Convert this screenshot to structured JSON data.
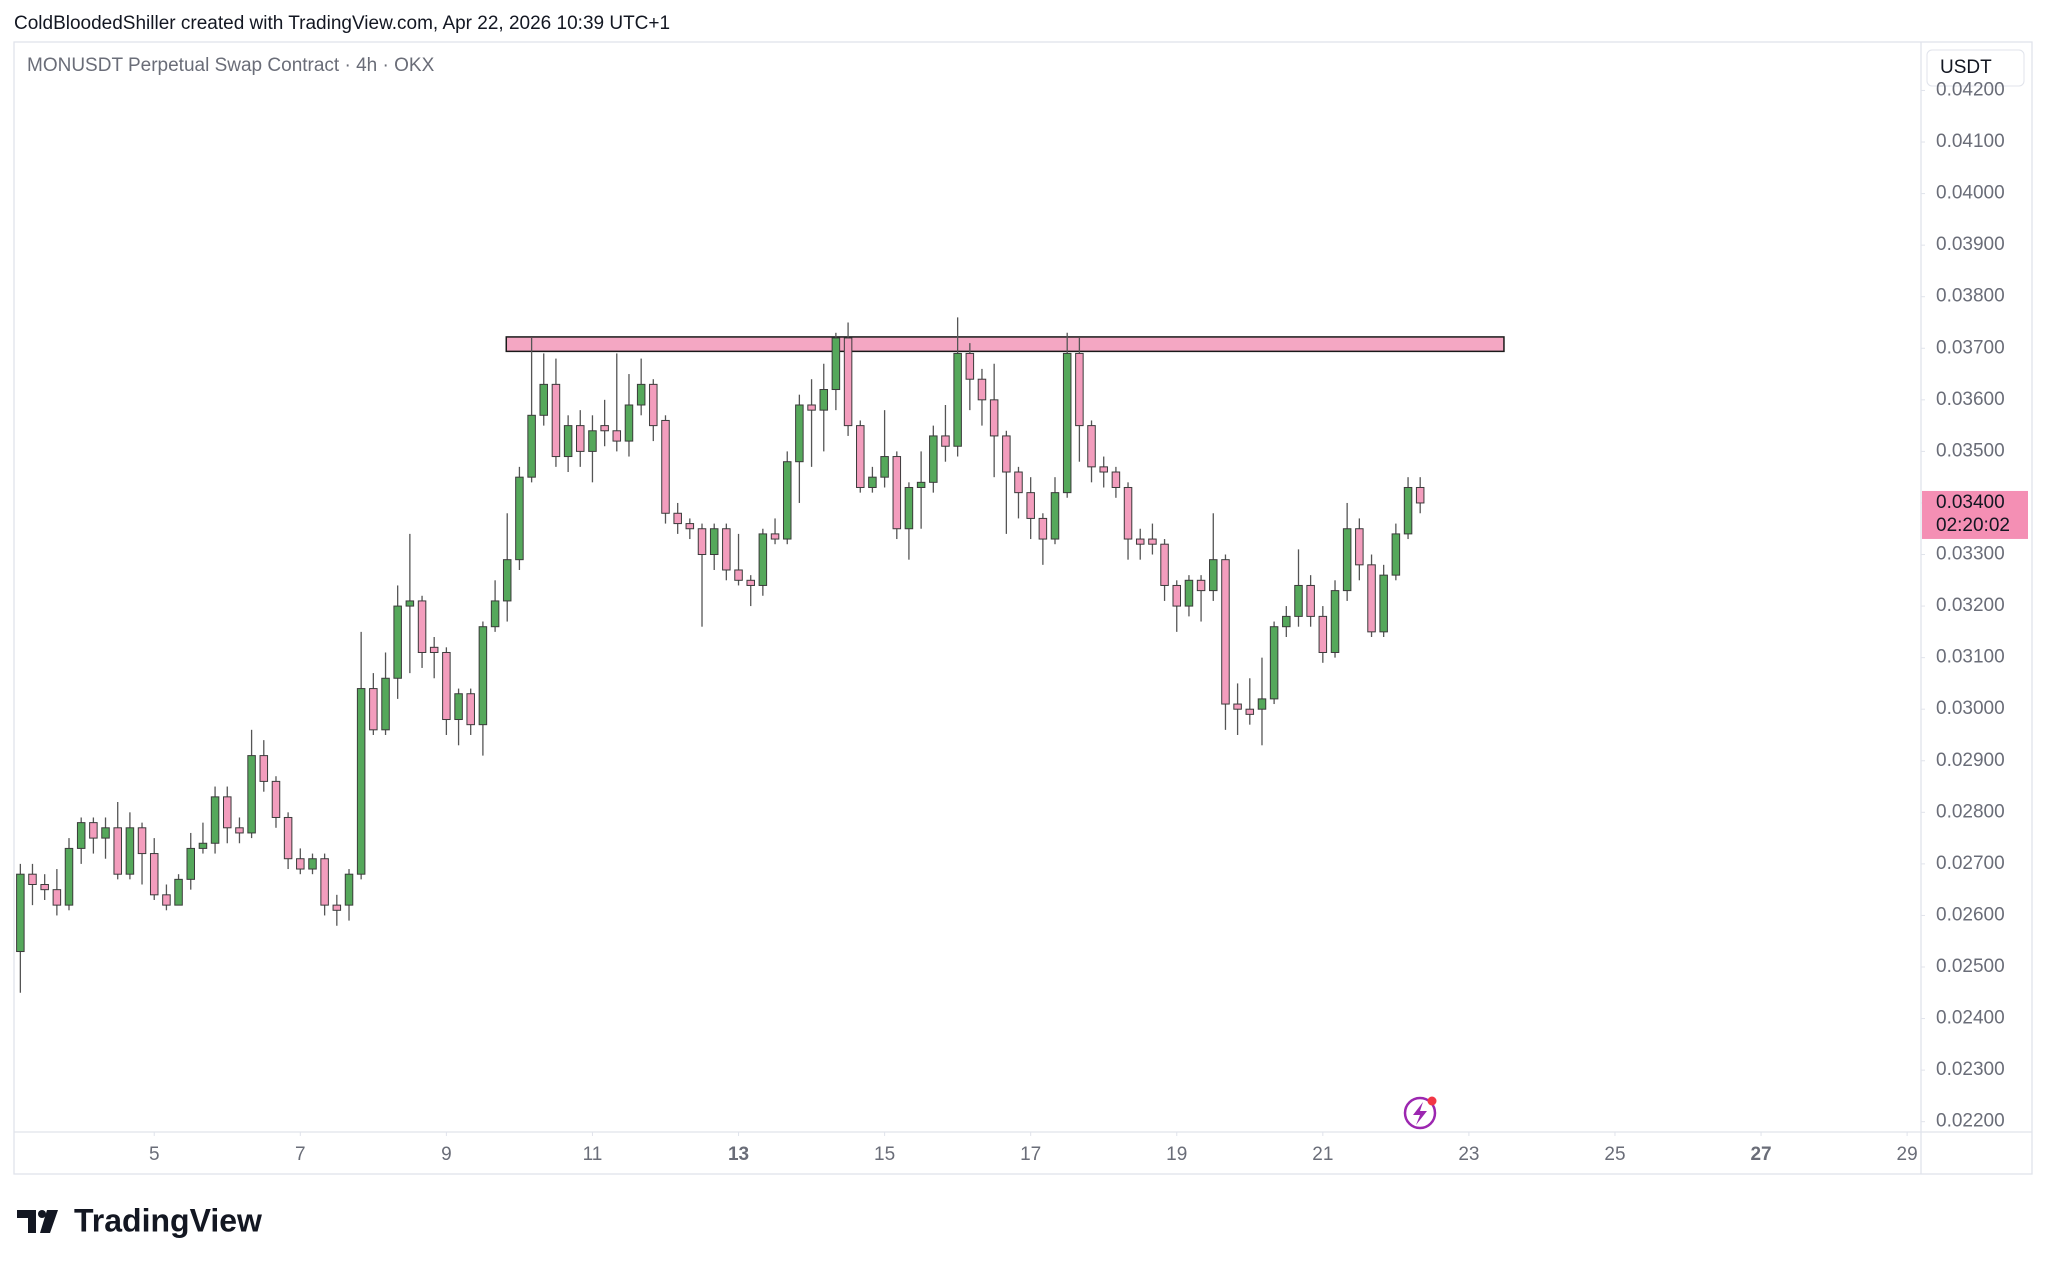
{
  "header": {
    "credit": "ColdBloodedShiller created with TradingView.com, Apr 22, 2026 10:39 UTC+1",
    "symbol": "MONUSDT Perpetual Swap Contract · 4h · OKX"
  },
  "footer": {
    "logo": "TradingView"
  },
  "chart_data": {
    "type": "candlestick",
    "price_scale_unit": "USDT",
    "up_color": "#55a85b",
    "down_color": "#f39dbd",
    "outline_color": "#3b3b3b",
    "x": [
      3.167,
      3.333,
      3.5,
      3.667,
      3.833,
      4,
      4.167,
      4.333,
      4.5,
      4.667,
      4.833,
      5,
      5.167,
      5.333,
      5.5,
      5.667,
      5.833,
      6,
      6.167,
      6.333,
      6.5,
      6.667,
      6.833,
      7,
      7.167,
      7.333,
      7.5,
      7.667,
      7.833,
      8,
      8.167,
      8.333,
      8.5,
      8.667,
      8.833,
      9,
      9.167,
      9.333,
      9.5,
      9.667,
      9.833,
      10,
      10.167,
      10.333,
      10.5,
      10.667,
      10.833,
      11,
      11.167,
      11.333,
      11.5,
      11.667,
      11.833,
      12,
      12.167,
      12.333,
      12.5,
      12.667,
      12.833,
      13,
      13.167,
      13.333,
      13.5,
      13.667,
      13.833,
      14,
      14.167,
      14.333,
      14.5,
      14.667,
      14.833,
      15,
      15.167,
      15.333,
      15.5,
      15.667,
      15.833,
      16,
      16.167,
      16.333,
      16.5,
      16.667,
      16.833,
      17,
      17.167,
      17.333,
      17.5,
      17.667,
      17.833,
      18,
      18.167,
      18.333,
      18.5,
      18.667,
      18.833,
      19,
      19.167,
      19.333,
      19.5,
      19.667,
      19.833,
      20,
      20.167,
      20.333,
      20.5,
      20.667,
      20.833,
      21,
      21.167,
      21.333,
      21.5,
      21.667,
      21.833,
      22,
      22.167,
      22.333
    ],
    "open": [
      0.0253,
      0.0268,
      0.0266,
      0.0265,
      0.0262,
      0.0273,
      0.0278,
      0.0275,
      0.0277,
      0.0268,
      0.0277,
      0.0272,
      0.0264,
      0.0262,
      0.0267,
      0.0273,
      0.0274,
      0.0283,
      0.0277,
      0.0276,
      0.0291,
      0.0286,
      0.0279,
      0.0271,
      0.0269,
      0.0271,
      0.0262,
      0.0262,
      0.0268,
      0.0304,
      0.0296,
      0.0306,
      0.032,
      0.0321,
      0.0312,
      0.0311,
      0.0298,
      0.0303,
      0.0297,
      0.0316,
      0.0321,
      0.0329,
      0.0345,
      0.0357,
      0.0363,
      0.0349,
      0.0355,
      0.035,
      0.0355,
      0.0354,
      0.0352,
      0.0359,
      0.0363,
      0.0356,
      0.0338,
      0.0336,
      0.0335,
      0.033,
      0.0335,
      0.0327,
      0.0325,
      0.0324,
      0.0334,
      0.0333,
      0.0348,
      0.0359,
      0.0358,
      0.0362,
      0.0372,
      0.0355,
      0.0343,
      0.0345,
      0.0349,
      0.0335,
      0.0343,
      0.0344,
      0.0353,
      0.0351,
      0.0369,
      0.0364,
      0.036,
      0.0353,
      0.0346,
      0.0342,
      0.0337,
      0.0333,
      0.0342,
      0.0369,
      0.0355,
      0.0347,
      0.0346,
      0.0343,
      0.0333,
      0.0333,
      0.0332,
      0.0324,
      0.032,
      0.0325,
      0.0323,
      0.0329,
      0.0301,
      0.03,
      0.03,
      0.0302,
      0.0316,
      0.0318,
      0.0324,
      0.0318,
      0.0311,
      0.0323,
      0.0335,
      0.0328,
      0.0315,
      0.0326,
      0.0334,
      0.0343
    ],
    "high": [
      0.027,
      0.027,
      0.0268,
      0.0269,
      0.0275,
      0.0279,
      0.0279,
      0.0279,
      0.0282,
      0.028,
      0.0278,
      0.0275,
      0.0266,
      0.0268,
      0.0276,
      0.0278,
      0.0285,
      0.0285,
      0.0279,
      0.0296,
      0.0294,
      0.0287,
      0.028,
      0.0273,
      0.0272,
      0.0272,
      0.0264,
      0.0269,
      0.0315,
      0.0307,
      0.0311,
      0.0324,
      0.0334,
      0.0322,
      0.0314,
      0.0312,
      0.0304,
      0.0304,
      0.0317,
      0.0325,
      0.0338,
      0.0347,
      0.0372,
      0.0369,
      0.0368,
      0.0357,
      0.0358,
      0.0357,
      0.036,
      0.0369,
      0.0365,
      0.0368,
      0.0364,
      0.0357,
      0.034,
      0.0337,
      0.0336,
      0.0336,
      0.0336,
      0.0334,
      0.0326,
      0.0335,
      0.0337,
      0.035,
      0.0361,
      0.0364,
      0.0367,
      0.0373,
      0.0375,
      0.0356,
      0.0347,
      0.0358,
      0.035,
      0.0344,
      0.035,
      0.0355,
      0.0359,
      0.0376,
      0.0371,
      0.0366,
      0.0367,
      0.0354,
      0.0347,
      0.0345,
      0.0338,
      0.0345,
      0.0373,
      0.0372,
      0.0356,
      0.0349,
      0.0347,
      0.0344,
      0.0335,
      0.0336,
      0.0333,
      0.0325,
      0.0326,
      0.0326,
      0.0338,
      0.033,
      0.0305,
      0.0306,
      0.031,
      0.0317,
      0.032,
      0.0331,
      0.0326,
      0.032,
      0.0325,
      0.034,
      0.0337,
      0.033,
      0.0328,
      0.0336,
      0.0345,
      0.0345
    ],
    "low": [
      0.0245,
      0.0262,
      0.0263,
      0.026,
      0.0261,
      0.027,
      0.0272,
      0.0271,
      0.0267,
      0.0267,
      0.0266,
      0.0263,
      0.0261,
      0.0262,
      0.0265,
      0.0272,
      0.0272,
      0.0274,
      0.0274,
      0.0275,
      0.0284,
      0.0277,
      0.0269,
      0.0268,
      0.0268,
      0.026,
      0.0258,
      0.0259,
      0.0267,
      0.0295,
      0.0295,
      0.0302,
      0.0307,
      0.0308,
      0.0306,
      0.0295,
      0.0293,
      0.0295,
      0.0291,
      0.0315,
      0.0317,
      0.0327,
      0.0344,
      0.0355,
      0.0347,
      0.0346,
      0.0347,
      0.0344,
      0.0351,
      0.035,
      0.0349,
      0.0357,
      0.0352,
      0.0336,
      0.0334,
      0.0333,
      0.0316,
      0.0327,
      0.0325,
      0.0324,
      0.032,
      0.0322,
      0.0332,
      0.0332,
      0.034,
      0.0347,
      0.035,
      0.0358,
      0.0353,
      0.0342,
      0.0342,
      0.0343,
      0.0333,
      0.0329,
      0.0335,
      0.0342,
      0.0348,
      0.0349,
      0.0358,
      0.0355,
      0.0345,
      0.0334,
      0.0337,
      0.0333,
      0.0328,
      0.0332,
      0.0341,
      0.0348,
      0.0344,
      0.0343,
      0.0341,
      0.0329,
      0.0329,
      0.033,
      0.0321,
      0.0315,
      0.0318,
      0.0317,
      0.0321,
      0.0296,
      0.0295,
      0.0297,
      0.0293,
      0.0301,
      0.0314,
      0.0316,
      0.0316,
      0.0309,
      0.031,
      0.0321,
      0.0325,
      0.0314,
      0.0314,
      0.0325,
      0.0333,
      0.0338
    ],
    "close": [
      0.0268,
      0.0266,
      0.0265,
      0.0262,
      0.0273,
      0.0278,
      0.0275,
      0.0277,
      0.0268,
      0.0277,
      0.0272,
      0.0264,
      0.0262,
      0.0267,
      0.0273,
      0.0274,
      0.0283,
      0.0277,
      0.0276,
      0.0291,
      0.0286,
      0.0279,
      0.0271,
      0.0269,
      0.0271,
      0.0262,
      0.0261,
      0.0268,
      0.0304,
      0.0296,
      0.0306,
      0.032,
      0.0321,
      0.0311,
      0.0311,
      0.0298,
      0.0303,
      0.0297,
      0.0316,
      0.0321,
      0.0329,
      0.0345,
      0.0357,
      0.0363,
      0.0349,
      0.0355,
      0.035,
      0.0354,
      0.0354,
      0.0352,
      0.0359,
      0.0363,
      0.0355,
      0.0338,
      0.0336,
      0.0335,
      0.033,
      0.0335,
      0.0327,
      0.0325,
      0.0324,
      0.0334,
      0.0333,
      0.0348,
      0.0359,
      0.0358,
      0.0362,
      0.0372,
      0.0355,
      0.0343,
      0.0345,
      0.0349,
      0.0335,
      0.0343,
      0.0344,
      0.0353,
      0.0351,
      0.0369,
      0.0364,
      0.036,
      0.0353,
      0.0346,
      0.0342,
      0.0337,
      0.0333,
      0.0342,
      0.0369,
      0.0355,
      0.0347,
      0.0346,
      0.0343,
      0.0333,
      0.0332,
      0.0332,
      0.0324,
      0.032,
      0.0325,
      0.0323,
      0.0329,
      0.0301,
      0.03,
      0.0299,
      0.0302,
      0.0316,
      0.0318,
      0.0324,
      0.0318,
      0.0311,
      0.0323,
      0.0335,
      0.0328,
      0.0315,
      0.0326,
      0.0334,
      0.0343,
      0.034
    ],
    "xlim": [
      3.08,
      29.19
    ],
    "xticks": [
      5,
      7,
      9,
      11,
      13,
      15,
      17,
      19,
      21,
      23,
      25,
      27,
      29
    ],
    "xticks_bold": [
      13,
      27
    ],
    "ylim": [
      0.0218,
      0.04294
    ],
    "yticks": [
      {
        "value": 0.022,
        "label": "0.02200"
      },
      {
        "value": 0.023,
        "label": "0.02300"
      },
      {
        "value": 0.024,
        "label": "0.02400"
      },
      {
        "value": 0.025,
        "label": "0.02500"
      },
      {
        "value": 0.026,
        "label": "0.02600"
      },
      {
        "value": 0.027,
        "label": "0.02700"
      },
      {
        "value": 0.028,
        "label": "0.02800"
      },
      {
        "value": 0.029,
        "label": "0.02900"
      },
      {
        "value": 0.03,
        "label": "0.03000"
      },
      {
        "value": 0.031,
        "label": "0.03100"
      },
      {
        "value": 0.032,
        "label": "0.03200"
      },
      {
        "value": 0.033,
        "label": "0.03300"
      },
      {
        "value": 0.034,
        "label": "0.03400"
      },
      {
        "value": 0.035,
        "label": "0.03500"
      },
      {
        "value": 0.036,
        "label": "0.03600"
      },
      {
        "value": 0.037,
        "label": "0.03700"
      },
      {
        "value": 0.038,
        "label": "0.03800"
      },
      {
        "value": 0.039,
        "label": "0.03900"
      },
      {
        "value": 0.04,
        "label": "0.04000"
      },
      {
        "value": 0.041,
        "label": "0.04100"
      },
      {
        "value": 0.042,
        "label": "0.04200"
      }
    ],
    "zone": {
      "x": [
        9.82,
        23.48
      ],
      "y": [
        0.03694,
        0.03722
      ],
      "color": "#f4a7c3"
    },
    "last_price": {
      "value": 0.034,
      "label": "0.03400"
    },
    "countdown": "02:20:02",
    "last_price_color": "#f48fb4"
  }
}
